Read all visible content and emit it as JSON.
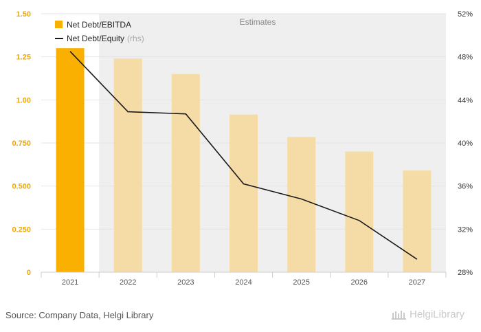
{
  "chart_data": {
    "type": "bar",
    "categories": [
      "2021",
      "2022",
      "2023",
      "2024",
      "2025",
      "2026",
      "2027"
    ],
    "estimates_label": "Estimates",
    "estimates_from_index": 1,
    "series": [
      {
        "name": "Net Debt/EBITDA",
        "kind": "bar",
        "axis": "left",
        "values": [
          1.3,
          1.24,
          1.15,
          0.915,
          0.785,
          0.7,
          0.59
        ],
        "color": "#f9b000",
        "estimate_color": "#f5dca7"
      },
      {
        "name": "Net Debt/Equity",
        "suffix": "(rhs)",
        "kind": "line",
        "axis": "right",
        "values": [
          48.5,
          42.9,
          42.7,
          36.2,
          34.8,
          32.8,
          29.2
        ],
        "color": "#1a1a1a"
      }
    ],
    "left_axis": {
      "ylim": [
        0,
        1.5
      ],
      "ticks": [
        "0",
        "0.250",
        "0.500",
        "0.750",
        "1.00",
        "1.25",
        "1.50"
      ],
      "tick_values": [
        0,
        0.25,
        0.5,
        0.75,
        1.0,
        1.25,
        1.5
      ],
      "color": "#f0a500"
    },
    "right_axis": {
      "ylim": [
        28,
        52
      ],
      "ticks": [
        "28%",
        "32%",
        "36%",
        "40%",
        "44%",
        "48%",
        "52%"
      ],
      "tick_values": [
        28,
        32,
        36,
        40,
        44,
        48,
        52
      ]
    },
    "legend_position": "top-left",
    "grid": true
  },
  "footer": {
    "source": "Source: Company Data, Helgi Library",
    "logo_text": "HelgiLibrary",
    "logo_icon": "library-icon"
  }
}
